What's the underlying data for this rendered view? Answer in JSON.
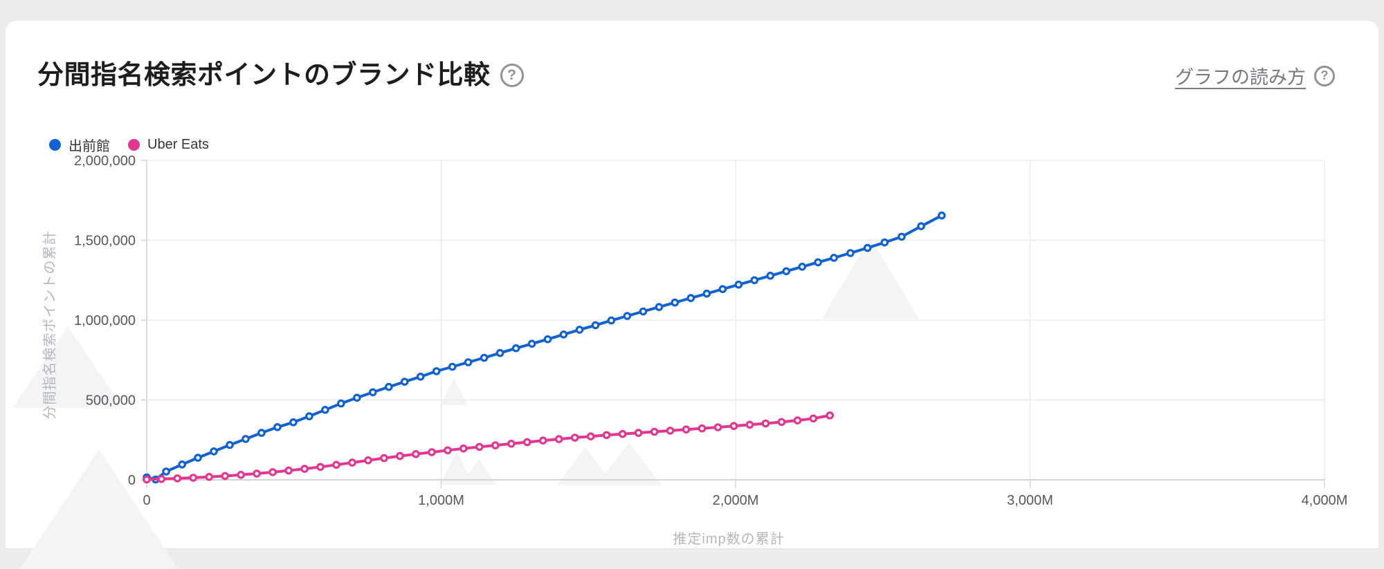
{
  "header": {
    "title": "分間指名検索ポイントのブランド比較",
    "title_help_icon": "?",
    "reading_guide_link": "グラフの読み方",
    "link_help_icon": "?"
  },
  "chart_data": {
    "type": "line",
    "title": "分間指名検索ポイントのブランド比較",
    "xlabel": "推定imp数の累計",
    "ylabel": "分間指名検索ポイントの累計",
    "x_unit": "M (million impressions)",
    "xlim": [
      0,
      4000
    ],
    "ylim": [
      0,
      2000000
    ],
    "grid": true,
    "legend_position": "top-left",
    "x_ticks": [
      {
        "value": 0,
        "label": "0"
      },
      {
        "value": 1000,
        "label": "1,000M"
      },
      {
        "value": 2000,
        "label": "2,000M"
      },
      {
        "value": 3000,
        "label": "3,000M"
      },
      {
        "value": 4000,
        "label": "4,000M"
      }
    ],
    "y_ticks": [
      {
        "value": 0,
        "label": "0"
      },
      {
        "value": 500000,
        "label": "500,000"
      },
      {
        "value": 1000000,
        "label": "1,000,000"
      },
      {
        "value": 1500000,
        "label": "1,500,000"
      },
      {
        "value": 2000000,
        "label": "2,000,000"
      }
    ],
    "series": [
      {
        "name": "出前館",
        "color": "#1261d3",
        "marker": "open-circle",
        "points": [
          [
            0,
            15000
          ],
          [
            30,
            2000
          ],
          [
            66,
            52000
          ],
          [
            120,
            96000
          ],
          [
            174,
            138000
          ],
          [
            228,
            178000
          ],
          [
            282,
            218000
          ],
          [
            336,
            256000
          ],
          [
            390,
            294000
          ],
          [
            444,
            330000
          ],
          [
            498,
            360000
          ],
          [
            552,
            398000
          ],
          [
            606,
            438000
          ],
          [
            660,
            478000
          ],
          [
            714,
            514000
          ],
          [
            768,
            548000
          ],
          [
            822,
            582000
          ],
          [
            876,
            614000
          ],
          [
            930,
            646000
          ],
          [
            984,
            680000
          ],
          [
            1038,
            708000
          ],
          [
            1092,
            736000
          ],
          [
            1146,
            764000
          ],
          [
            1200,
            794000
          ],
          [
            1254,
            824000
          ],
          [
            1308,
            852000
          ],
          [
            1362,
            880000
          ],
          [
            1416,
            910000
          ],
          [
            1470,
            940000
          ],
          [
            1524,
            968000
          ],
          [
            1578,
            998000
          ],
          [
            1632,
            1026000
          ],
          [
            1686,
            1054000
          ],
          [
            1740,
            1082000
          ],
          [
            1794,
            1110000
          ],
          [
            1848,
            1138000
          ],
          [
            1902,
            1166000
          ],
          [
            1956,
            1194000
          ],
          [
            2010,
            1222000
          ],
          [
            2064,
            1250000
          ],
          [
            2118,
            1278000
          ],
          [
            2172,
            1306000
          ],
          [
            2226,
            1334000
          ],
          [
            2280,
            1362000
          ],
          [
            2334,
            1390000
          ],
          [
            2390,
            1420000
          ],
          [
            2448,
            1452000
          ],
          [
            2506,
            1486000
          ],
          [
            2564,
            1522000
          ],
          [
            2630,
            1588000
          ],
          [
            2700,
            1655000
          ]
        ]
      },
      {
        "name": "Uber Eats",
        "color": "#e23691",
        "marker": "open-circle",
        "points": [
          [
            0,
            2000
          ],
          [
            50,
            5000
          ],
          [
            104,
            9000
          ],
          [
            158,
            13000
          ],
          [
            212,
            18000
          ],
          [
            266,
            24000
          ],
          [
            320,
            31000
          ],
          [
            374,
            39000
          ],
          [
            428,
            48000
          ],
          [
            482,
            58000
          ],
          [
            536,
            69000
          ],
          [
            590,
            81000
          ],
          [
            644,
            94000
          ],
          [
            698,
            108000
          ],
          [
            752,
            122000
          ],
          [
            806,
            136000
          ],
          [
            860,
            149000
          ],
          [
            914,
            161000
          ],
          [
            968,
            173000
          ],
          [
            1022,
            185000
          ],
          [
            1076,
            196000
          ],
          [
            1130,
            206000
          ],
          [
            1184,
            216000
          ],
          [
            1238,
            226000
          ],
          [
            1292,
            236000
          ],
          [
            1346,
            246000
          ],
          [
            1400,
            255000
          ],
          [
            1454,
            264000
          ],
          [
            1508,
            272000
          ],
          [
            1562,
            280000
          ],
          [
            1616,
            287000
          ],
          [
            1670,
            294000
          ],
          [
            1724,
            301000
          ],
          [
            1778,
            308000
          ],
          [
            1832,
            315000
          ],
          [
            1886,
            322000
          ],
          [
            1940,
            329000
          ],
          [
            1994,
            337000
          ],
          [
            2048,
            345000
          ],
          [
            2102,
            353000
          ],
          [
            2156,
            362000
          ],
          [
            2210,
            372000
          ],
          [
            2264,
            384000
          ],
          [
            2320,
            403000
          ]
        ]
      }
    ],
    "colors": {
      "grid_line": "#e9eaec",
      "axis_line": "#d2d4d6",
      "tick_label": "#54575b",
      "axis_title": "#b3b7bc",
      "watermark": "#f3f4f6",
      "card_background": "#ffffff",
      "page_background": "#ebecee"
    }
  }
}
